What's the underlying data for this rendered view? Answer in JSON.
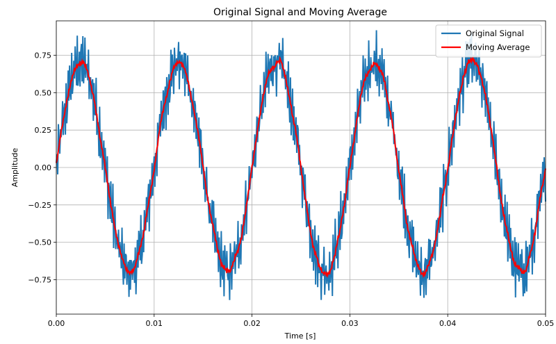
{
  "chart_data": {
    "type": "line",
    "title": "Original Signal and Moving Average",
    "xlabel": "Time [s]",
    "ylabel": "Amplitude",
    "xlim": [
      0.0,
      0.05
    ],
    "ylim": [
      -0.98,
      0.98
    ],
    "grid": true,
    "legend_position": "top-right",
    "x_ticks": [
      0.0,
      0.01,
      0.02,
      0.03,
      0.04,
      0.05
    ],
    "x_tick_labels": [
      "0.00",
      "0.01",
      "0.02",
      "0.03",
      "0.04",
      "0.05"
    ],
    "y_ticks": [
      -0.75,
      -0.5,
      -0.25,
      0.0,
      0.25,
      0.5,
      0.75
    ],
    "y_tick_labels": [
      "−0.75",
      "−0.50",
      "−0.25",
      "0.00",
      "0.25",
      "0.50",
      "0.75"
    ],
    "series": [
      {
        "name": "Original Signal",
        "color": "#1f77b4",
        "description_values": "sine wave, amplitude 0.70, frequency 100 Hz, plus high-frequency noise of about ±0.17",
        "x_start": 0.0,
        "x_end": 0.05,
        "base_amplitude": 0.7,
        "base_frequency_hz": 100,
        "noise_amplitude": 0.17
      },
      {
        "name": "Moving Average",
        "color": "#ff0000",
        "description_values": "smoothed sine wave, amplitude 0.70, frequency 100 Hz, residual ripple about ±0.04",
        "x_start": 0.0,
        "x_end": 0.05,
        "base_amplitude": 0.7,
        "base_frequency_hz": 100,
        "noise_amplitude": 0.04
      }
    ]
  }
}
